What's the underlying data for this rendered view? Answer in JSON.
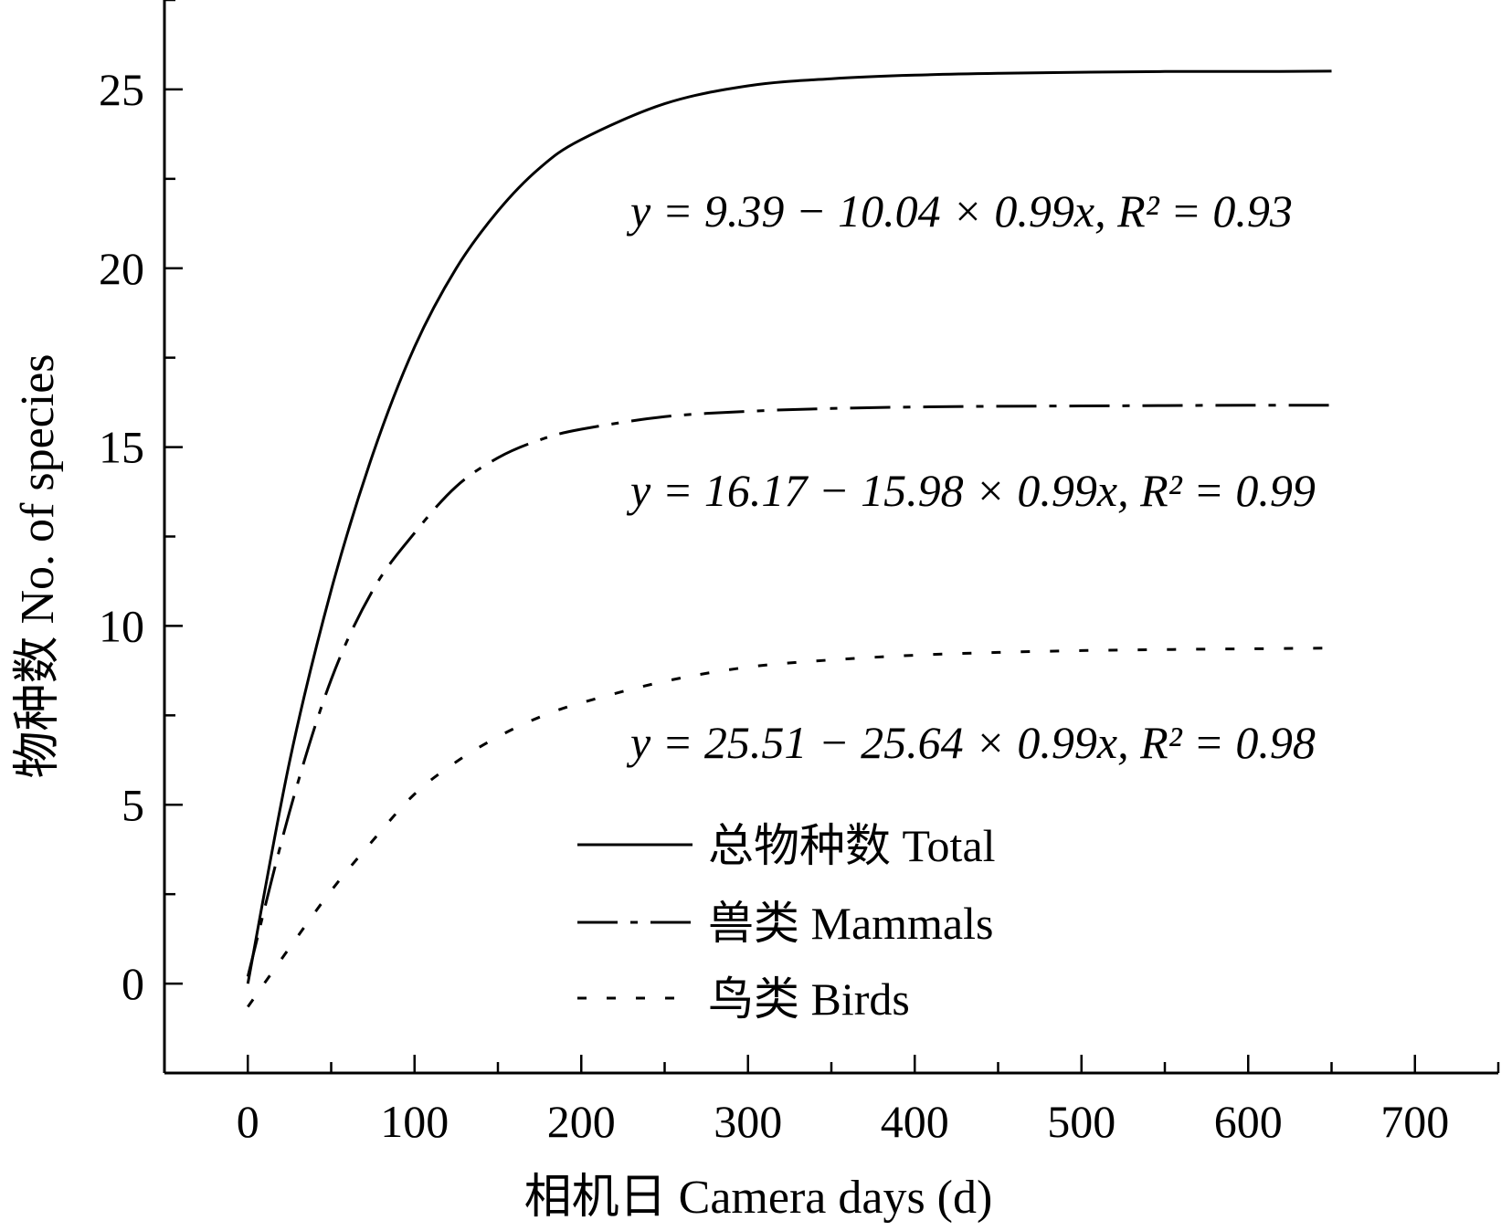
{
  "chart_data": {
    "type": "line",
    "xlabel": "相机日 Camera days (d)",
    "ylabel": "物种数 No. of species",
    "xlim": [
      -50,
      750
    ],
    "ylim": [
      -2.5,
      27.5
    ],
    "x_ticks": [
      0,
      100,
      200,
      300,
      400,
      500,
      600,
      700
    ],
    "y_ticks": [
      0,
      5,
      10,
      15,
      20,
      25
    ],
    "grid": false,
    "legend_position": "bottom-center",
    "series": [
      {
        "name": "总物种数 Total",
        "line_style": "solid",
        "x": [
          0,
          25,
          50,
          75,
          100,
          125,
          150,
          175,
          200,
          250,
          300,
          350,
          400,
          450,
          500,
          550,
          600,
          650
        ],
        "y": [
          0,
          6.2,
          11.0,
          14.8,
          17.8,
          20.0,
          21.6,
          22.8,
          23.6,
          24.6,
          25.1,
          25.3,
          25.4,
          25.45,
          25.48,
          25.5,
          25.5,
          25.51
        ]
      },
      {
        "name": "兽类 Mammals",
        "line_style": "dashdot",
        "x": [
          0,
          25,
          50,
          75,
          100,
          125,
          150,
          175,
          200,
          250,
          300,
          350,
          400,
          450,
          500,
          550,
          600,
          650
        ],
        "y": [
          0.2,
          4.8,
          8.5,
          11.0,
          12.6,
          13.9,
          14.7,
          15.2,
          15.5,
          15.85,
          16.0,
          16.08,
          16.12,
          16.14,
          16.15,
          16.16,
          16.17,
          16.17
        ]
      },
      {
        "name": "鸟类 Birds",
        "line_style": "dotted",
        "x": [
          0,
          25,
          50,
          75,
          100,
          125,
          150,
          175,
          200,
          250,
          300,
          350,
          400,
          450,
          500,
          550,
          600,
          650
        ],
        "y": [
          -0.65,
          1.0,
          2.6,
          4.0,
          5.3,
          6.2,
          6.9,
          7.45,
          7.85,
          8.45,
          8.85,
          9.05,
          9.18,
          9.26,
          9.31,
          9.34,
          9.36,
          9.38
        ]
      }
    ],
    "annotations": [
      {
        "id": "eq1",
        "text": "y = 9.39 − 10.04 × 0.99x, R² = 0.93"
      },
      {
        "id": "eq2",
        "text": "y = 16.17 − 15.98 × 0.99x, R² = 0.99"
      },
      {
        "id": "eq3",
        "text": "y = 25.51 − 25.64 × 0.99x, R² = 0.98"
      }
    ]
  }
}
